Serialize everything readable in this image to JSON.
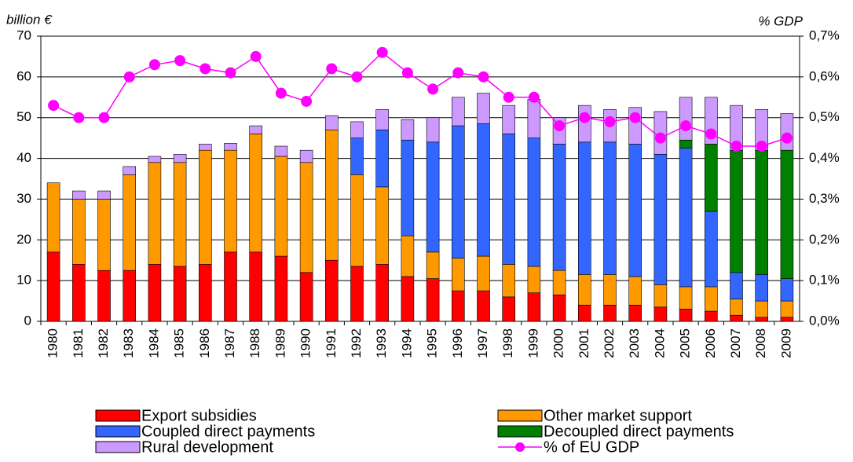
{
  "chart_data": {
    "type": "bar",
    "y_label": "billion €",
    "y2_label": "% GDP",
    "categories": [
      "1980",
      "1981",
      "1982",
      "1983",
      "1984",
      "1985",
      "1986",
      "1987",
      "1988",
      "1989",
      "1990",
      "1991",
      "1992",
      "1993",
      "1994",
      "1995",
      "1996",
      "1997",
      "1998",
      "1999",
      "2000",
      "2001",
      "2002",
      "2003",
      "2004",
      "2005",
      "2006",
      "2007",
      "2008",
      "2009"
    ],
    "stacked": true,
    "series": [
      {
        "name": "Export subsidies",
        "color": "#ff0000",
        "values": [
          17,
          14,
          12.5,
          12.5,
          14,
          13.5,
          14,
          17,
          17,
          16,
          12,
          15,
          13.5,
          14,
          11,
          10.5,
          7.5,
          7.5,
          6,
          7,
          6.5,
          4,
          4,
          4,
          3.5,
          3,
          2.5,
          1.5,
          1,
          1
        ]
      },
      {
        "name": "Other market support",
        "color": "#ff9900",
        "values": [
          17,
          16,
          17.5,
          23.5,
          25,
          25.5,
          28,
          25,
          29,
          24.5,
          27,
          32,
          22.5,
          19,
          10,
          6.5,
          8,
          8.5,
          8,
          6.5,
          6,
          7.5,
          7.5,
          7,
          5.5,
          5.5,
          6,
          4,
          4,
          4
        ]
      },
      {
        "name": "Coupled direct payments",
        "color": "#3366ff",
        "values": [
          0,
          0,
          0,
          0,
          0,
          0,
          0,
          0,
          0,
          0,
          0,
          0,
          9,
          14,
          23.5,
          27,
          32.5,
          32.5,
          32,
          31.5,
          31,
          32.5,
          32.5,
          32.5,
          32,
          34,
          18.5,
          6.5,
          6.5,
          5.5
        ]
      },
      {
        "name": "Decoupled direct payments",
        "color": "#008000",
        "values": [
          0,
          0,
          0,
          0,
          0,
          0,
          0,
          0,
          0,
          0,
          0,
          0,
          0,
          0,
          0,
          0,
          0,
          0,
          0,
          0,
          0,
          0,
          0,
          0,
          0,
          2,
          16.5,
          30,
          30.5,
          31.5
        ]
      },
      {
        "name": "Rural development",
        "color": "#cc99ff",
        "values": [
          0,
          2,
          2,
          2,
          1.5,
          2,
          1.5,
          1.7,
          2,
          2.5,
          3,
          3.5,
          4,
          5,
          5,
          6,
          7,
          7.5,
          7,
          9.5,
          6.5,
          9,
          8,
          9,
          10.5,
          10.5,
          11.5,
          11,
          10,
          9
        ]
      },
      {
        "name": "% of EU GDP",
        "color": "#ff00ff",
        "type": "line",
        "axis": "y2",
        "values": [
          0.53,
          0.5,
          0.5,
          0.6,
          0.63,
          0.64,
          0.62,
          0.61,
          0.65,
          0.56,
          0.54,
          0.62,
          0.6,
          0.66,
          0.61,
          0.57,
          0.61,
          0.6,
          0.55,
          0.55,
          0.48,
          0.5,
          0.49,
          0.5,
          0.45,
          0.48,
          0.46,
          0.43,
          0.43,
          0.45
        ]
      }
    ],
    "ylim": [
      0,
      70
    ],
    "yticks": [
      0,
      10,
      20,
      30,
      40,
      50,
      60,
      70
    ],
    "y2lim": [
      0,
      0.7
    ],
    "y2ticks": [
      {
        "value": 0,
        "label": "0,0%"
      },
      {
        "value": 0.1,
        "label": "0,1%"
      },
      {
        "value": 0.2,
        "label": "0,2%"
      },
      {
        "value": 0.3,
        "label": "0,3%"
      },
      {
        "value": 0.4,
        "label": "0,4%"
      },
      {
        "value": 0.5,
        "label": "0,5%"
      },
      {
        "value": 0.6,
        "label": "0,6%"
      },
      {
        "value": 0.7,
        "label": "0,7%"
      }
    ],
    "grid": true,
    "legend": "bottom"
  }
}
